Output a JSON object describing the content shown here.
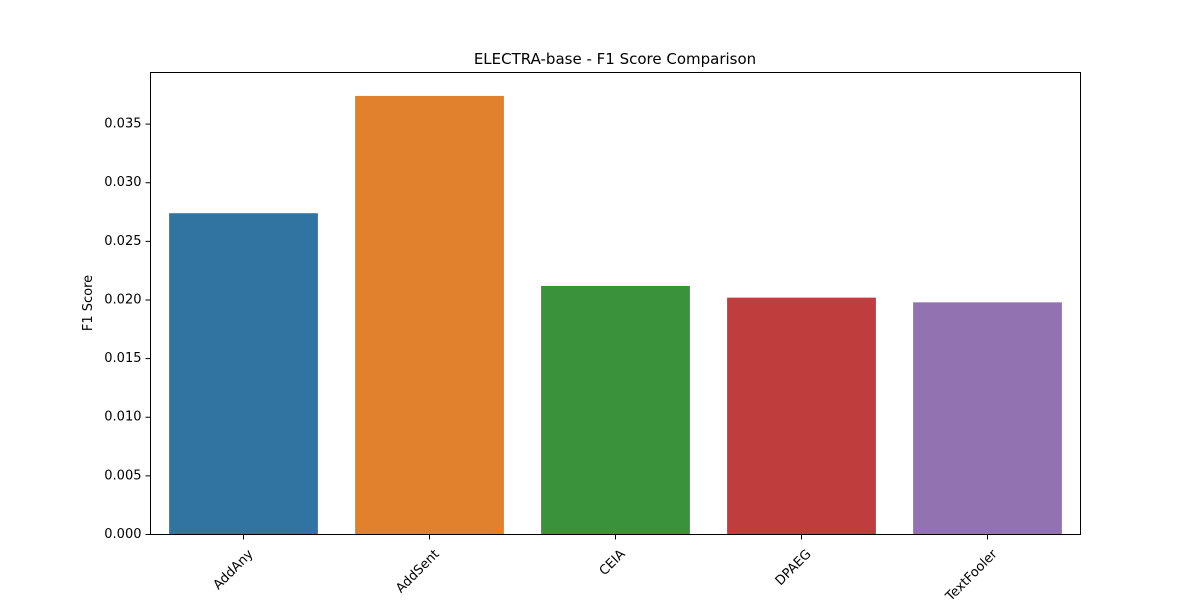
{
  "chart_data": {
    "type": "bar",
    "title": "ELECTRA-base - F1 Score Comparison",
    "xlabel": "",
    "ylabel": "F1 Score",
    "categories": [
      "AddAny",
      "AddSent",
      "CEIA",
      "DPAEG",
      "TextFooler"
    ],
    "values": [
      0.0274,
      0.0374,
      0.0212,
      0.0202,
      0.0198
    ],
    "colors": [
      "#3274a1",
      "#e1812c",
      "#3a923a",
      "#c03d3e",
      "#9372b2"
    ],
    "ylim": [
      0,
      0.0394
    ],
    "yticks": [
      0.0,
      0.005,
      0.01,
      0.015,
      0.02,
      0.025,
      0.03,
      0.035
    ],
    "ytick_labels": [
      "0.000",
      "0.005",
      "0.010",
      "0.015",
      "0.020",
      "0.025",
      "0.030",
      "0.035"
    ],
    "grid": false,
    "legend": "none"
  }
}
